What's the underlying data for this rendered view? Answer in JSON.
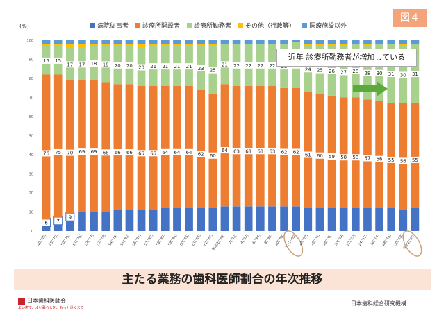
{
  "badge": "図４",
  "banner_title": "主たる業務の歯科医師割合の年次推移",
  "footer_left_org": "日本歯科医師会",
  "footer_left_tagline": "よい歯で、よい暮らしを、もっと遠くまで",
  "footer_right_org": "日本歯科総合研究機構",
  "callout_text": "近年 診療所勤務者が増加している",
  "colors": {
    "hospital": "#4472c4",
    "clinic_owner": "#ed7d31",
    "clinic_staff": "#a9d18e",
    "other": "#ffc000",
    "non_medical": "#5b9bd5",
    "arrow": "#5bab3c",
    "circle": "#c9a37a"
  },
  "chart_data": {
    "type": "bar",
    "stacked": true,
    "ylabel": "(%)",
    "ylim": [
      0,
      100
    ],
    "yticks": [
      0,
      10,
      20,
      30,
      40,
      50,
      60,
      70,
      80,
      90,
      100
    ],
    "legend": [
      "病院従事者",
      "診療所開設者",
      "診療所勤務者",
      "その他（行政等）",
      "医療施設以外"
    ],
    "legend_placement": "top",
    "categories": [
      "40(\"65)",
      "45(\"70)",
      "50(\"75)",
      "51(\"76)",
      "52(\"77)",
      "53(\"78)",
      "54(\"79)",
      "55(\"80)",
      "56(\"81)",
      "57(\"82)",
      "58(\"83)",
      "59(\"84)",
      "60(\"85)",
      "61(\"86)",
      "62(\"87)",
      "平成元(\"89)",
      "2(\"90)",
      "4(\"92)",
      "6(\"94)",
      "8(\"96)",
      "10(\"98)",
      "12(2000)",
      "14(\"02)",
      "16(\"04)",
      "18(\"06)",
      "20(\"08)",
      "22(\"10)",
      "24(\"12)",
      "26(\"14)",
      "28(\"16)",
      "30(\"18)",
      "令和2(\"20)"
    ],
    "series": [
      {
        "name": "病院従事者",
        "values": [
          6,
          7,
          9,
          10,
          10,
          10,
          11,
          11,
          11,
          11,
          12,
          12,
          12,
          12,
          12,
          13,
          13,
          13,
          13,
          13,
          13,
          13,
          12,
          12,
          12,
          12,
          12,
          12,
          12,
          12,
          11,
          12
        ]
      },
      {
        "name": "診療所開設者",
        "values": [
          76,
          75,
          70,
          69,
          69,
          68,
          66,
          66,
          65,
          65,
          64,
          64,
          64,
          62,
          60,
          64,
          63,
          63,
          63,
          63,
          62,
          62,
          61,
          60,
          59,
          58,
          58,
          57,
          56,
          55,
          56,
          55
        ]
      },
      {
        "name": "診療所勤務者",
        "values": [
          15,
          15,
          17,
          17,
          18,
          19,
          20,
          20,
          20,
          21,
          21,
          21,
          21,
          23,
          25,
          21,
          22,
          22,
          22,
          22,
          23,
          24,
          24,
          25,
          26,
          27,
          28,
          28,
          30,
          31,
          30,
          31
        ]
      },
      {
        "name": "その他（行政等）",
        "values": [
          1,
          1,
          2,
          2,
          1,
          1,
          1,
          1,
          2,
          1,
          1,
          1,
          1,
          1,
          1,
          0,
          0,
          0,
          0,
          0,
          0,
          0,
          1,
          1,
          1,
          1,
          0,
          1,
          0,
          0,
          1,
          0
        ]
      },
      {
        "name": "医療施設以外",
        "values": [
          2,
          2,
          2,
          2,
          2,
          2,
          2,
          2,
          2,
          2,
          2,
          2,
          2,
          2,
          2,
          2,
          2,
          2,
          2,
          2,
          2,
          1,
          2,
          2,
          2,
          2,
          2,
          2,
          2,
          2,
          2,
          2
        ]
      }
    ],
    "label_series": [
      "病院従事者",
      "診療所開設者",
      "診療所勤務者"
    ],
    "circled_categories": [
      "12(2000)",
      "令和2(\"20)"
    ],
    "grid": false
  }
}
